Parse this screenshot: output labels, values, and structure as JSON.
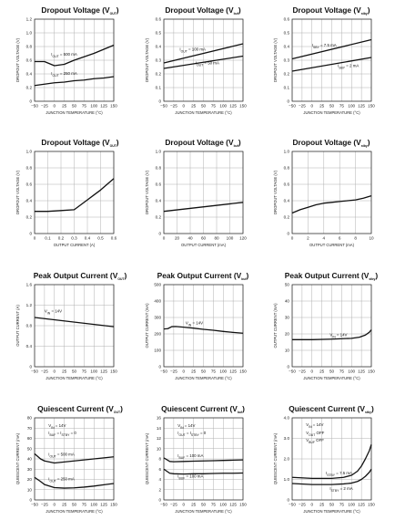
{
  "chart_data": [
    {
      "type": "line",
      "title": "Dropout Voltage (V",
      "title_sub": "OUT",
      "title_end": ")",
      "xlabel": "JUNCTION TEMPERATURE (°C)",
      "ylabel": "DROPOUT VOLTAGE (V)",
      "xlim": [
        -50,
        150
      ],
      "ylim": [
        0,
        1.2
      ],
      "xticks": [
        -50,
        -25,
        0,
        25,
        50,
        75,
        100,
        125,
        150
      ],
      "yticks": [
        0,
        0.2,
        0.4,
        0.6,
        0.8,
        1.0,
        1.2
      ],
      "ytick_labels": [
        "0",
        "0.2",
        "0.4",
        "0.6",
        "0.8",
        "1.0",
        "1.2"
      ],
      "series": [
        {
          "name": "I_OUT = 500 mA",
          "x": [
            -50,
            -25,
            0,
            25,
            50,
            75,
            100,
            125,
            150
          ],
          "y": [
            0.58,
            0.58,
            0.52,
            0.54,
            0.6,
            0.65,
            0.7,
            0.76,
            0.82
          ]
        },
        {
          "name": "I_OUT = 250 mA",
          "x": [
            -50,
            -25,
            0,
            25,
            50,
            75,
            100,
            125,
            150
          ],
          "y": [
            0.23,
            0.25,
            0.27,
            0.28,
            0.3,
            0.31,
            0.33,
            0.34,
            0.36
          ]
        }
      ],
      "annotations": [
        {
          "main": "I",
          "sub": "OUT",
          "rest": " = 500 mA",
          "x": -8,
          "y": 0.67
        },
        {
          "main": "I",
          "sub": "OUT",
          "rest": " = 250 mA",
          "x": -8,
          "y": 0.39
        }
      ]
    },
    {
      "type": "line",
      "title": "Dropout Voltage (V",
      "title_sub": "buf",
      "title_end": ")",
      "xlabel": "JUNCTION TEMPERATURE (°C)",
      "ylabel": "DROPOUT VOLTAGE (V)",
      "xlim": [
        -50,
        150
      ],
      "ylim": [
        0,
        0.6
      ],
      "xticks": [
        -50,
        -25,
        0,
        25,
        50,
        75,
        100,
        125,
        150
      ],
      "yticks": [
        0,
        0.1,
        0.2,
        0.3,
        0.4,
        0.5,
        0.6
      ],
      "ytick_labels": [
        "0",
        "0.1",
        "0.2",
        "0.3",
        "0.4",
        "0.5",
        "0.6"
      ],
      "series": [
        {
          "name": "I_OUT = 100 mA",
          "x": [
            -50,
            150
          ],
          "y": [
            0.28,
            0.42
          ]
        },
        {
          "name": "I_OUT = 50 mA",
          "x": [
            -50,
            150
          ],
          "y": [
            0.24,
            0.33
          ]
        }
      ],
      "annotations": [
        {
          "main": "I",
          "sub": "OUT",
          "rest": " = 100 mA",
          "x": -10,
          "y": 0.37
        },
        {
          "main": "I",
          "sub": "OUT",
          "rest": " = 50 mA",
          "x": 30,
          "y": 0.27
        }
      ]
    },
    {
      "type": "line",
      "title": "Dropout Voltage (V",
      "title_sub": "stby",
      "title_end": ")",
      "xlabel": "JUNCTION TEMPERATURE (°C)",
      "ylabel": "DROPOUT VOLTAGE (V)",
      "xlim": [
        -50,
        150
      ],
      "ylim": [
        0,
        0.6
      ],
      "xticks": [
        -50,
        -25,
        0,
        25,
        50,
        75,
        100,
        125,
        150
      ],
      "yticks": [
        0,
        0.1,
        0.2,
        0.3,
        0.4,
        0.5,
        0.6
      ],
      "ytick_labels": [
        "0",
        "0.1",
        "0.2",
        "0.3",
        "0.4",
        "0.5",
        "0.6"
      ],
      "series": [
        {
          "name": "I_SBY = 7.5 mA",
          "x": [
            -50,
            150
          ],
          "y": [
            0.31,
            0.45
          ]
        },
        {
          "name": "I_SBY = 2 mA",
          "x": [
            -50,
            150
          ],
          "y": [
            0.22,
            0.32
          ]
        }
      ],
      "annotations": [
        {
          "main": "I",
          "sub": "SBY",
          "rest": " = 7.5 mA",
          "x": 0,
          "y": 0.4
        },
        {
          "main": "I",
          "sub": "SBY",
          "rest": " = 2 mA",
          "x": 65,
          "y": 0.25
        }
      ]
    },
    {
      "type": "line",
      "title": "Dropout Voltage (V",
      "title_sub": "OUT",
      "title_end": ")",
      "xlabel": "OUTPUT CURRENT (A)",
      "ylabel": "DROPOUT VOLTAGE (V)",
      "xlim": [
        0,
        0.6
      ],
      "ylim": [
        0,
        1.0
      ],
      "xticks": [
        0,
        0.1,
        0.2,
        0.3,
        0.4,
        0.5,
        0.6
      ],
      "xtick_labels": [
        "0",
        "0.1",
        "0.2",
        "0.3",
        "0.4",
        "0.5",
        "0.6"
      ],
      "yticks": [
        0,
        0.2,
        0.4,
        0.6,
        0.8,
        1.0
      ],
      "ytick_labels": [
        "0",
        "0.2",
        "0.4",
        "0.6",
        "0.8",
        "1.0"
      ],
      "series": [
        {
          "name": "",
          "x": [
            0,
            0.1,
            0.2,
            0.3,
            0.35,
            0.4,
            0.45,
            0.5,
            0.55,
            0.6
          ],
          "y": [
            0.27,
            0.27,
            0.28,
            0.29,
            0.35,
            0.41,
            0.47,
            0.53,
            0.6,
            0.67
          ]
        }
      ],
      "annotations": []
    },
    {
      "type": "line",
      "title": "Dropout Voltage (V",
      "title_sub": "buf",
      "title_end": ")",
      "xlabel": "OUTPUT CURRENT (mA)",
      "ylabel": "DROPOUT VOLTAGE (V)",
      "xlim": [
        0,
        120
      ],
      "ylim": [
        0,
        1.0
      ],
      "xticks": [
        0,
        20,
        40,
        60,
        80,
        100,
        120
      ],
      "yticks": [
        0,
        0.2,
        0.4,
        0.6,
        0.8,
        1.0
      ],
      "ytick_labels": [
        "0",
        "0.2",
        "0.4",
        "0.6",
        "0.8",
        "1.0"
      ],
      "series": [
        {
          "name": "",
          "x": [
            0,
            120
          ],
          "y": [
            0.27,
            0.38
          ]
        }
      ],
      "annotations": []
    },
    {
      "type": "line",
      "title": "Dropout Voltage (V",
      "title_sub": "stby",
      "title_end": ")",
      "xlabel": "OUTPUT CURRENT (mA)",
      "ylabel": "DROPOUT VOLTAGE (V)",
      "xlim": [
        0,
        10
      ],
      "ylim": [
        0,
        1.0
      ],
      "xticks": [
        0,
        2,
        4,
        6,
        8,
        10
      ],
      "yticks": [
        0,
        0.2,
        0.4,
        0.6,
        0.8,
        1.0
      ],
      "ytick_labels": [
        "0",
        "0.2",
        "0.4",
        "0.6",
        "0.8",
        "1.0"
      ],
      "series": [
        {
          "name": "",
          "x": [
            0,
            1,
            2,
            3,
            4,
            5,
            6,
            7,
            8,
            9,
            10
          ],
          "y": [
            0.25,
            0.29,
            0.32,
            0.35,
            0.37,
            0.38,
            0.39,
            0.4,
            0.41,
            0.43,
            0.46
          ]
        }
      ],
      "annotations": []
    },
    {
      "type": "line",
      "title": "Peak Output Current (V",
      "title_sub": "OUT",
      "title_end": ")",
      "xlabel": "JUNCTION TEMPERATURE (°C)",
      "ylabel": "OUTPUT CURRENT (A)",
      "xlim": [
        -50,
        150
      ],
      "ylim": [
        0,
        1.6
      ],
      "xticks": [
        -50,
        -25,
        0,
        25,
        50,
        75,
        100,
        125,
        150
      ],
      "yticks": [
        0,
        0.4,
        0.8,
        1.2,
        1.6
      ],
      "ytick_labels": [
        "0",
        "0.4",
        "0.8",
        "1.2",
        "1.6"
      ],
      "series": [
        {
          "name": "V_IN = 14V",
          "x": [
            -50,
            150
          ],
          "y": [
            0.96,
            0.78
          ]
        }
      ],
      "annotations": [
        {
          "main": "V",
          "sub": "IN",
          "rest": " = 14V",
          "x": -25,
          "y": 1.06
        }
      ]
    },
    {
      "type": "line",
      "title": "Peak Output Current (V",
      "title_sub": "buf",
      "title_end": ")",
      "xlabel": "JUNCTION TEMPERATURE (°C)",
      "ylabel": "OUTPUT CURRENT (mA)",
      "xlim": [
        -50,
        150
      ],
      "ylim": [
        0,
        500
      ],
      "xticks": [
        -50,
        -25,
        0,
        25,
        50,
        75,
        100,
        125,
        150
      ],
      "yticks": [
        0,
        100,
        200,
        300,
        400,
        500
      ],
      "yticks_labels": null,
      "series": [
        {
          "name": "V_IN = 14V",
          "x": [
            -50,
            -40,
            -30,
            -20,
            0,
            25,
            50,
            75,
            100,
            125,
            150
          ],
          "y": [
            230,
            232,
            244,
            245,
            241,
            235,
            228,
            222,
            215,
            209,
            204
          ]
        }
      ],
      "annotations": [
        {
          "main": "V",
          "sub": "IN",
          "rest": " = 14V",
          "x": 5,
          "y": 258
        }
      ]
    },
    {
      "type": "line",
      "title": "Peak Output Current (V",
      "title_sub": "stby",
      "title_end": ")",
      "xlabel": "JUNCTION TEMPERATURE (°C)",
      "ylabel": "OUTPUT CURRENT (mA)",
      "xlim": [
        -50,
        150
      ],
      "ylim": [
        0,
        50
      ],
      "xticks": [
        -50,
        -25,
        0,
        25,
        50,
        75,
        100,
        125,
        150
      ],
      "yticks": [
        0,
        10,
        20,
        30,
        40,
        50
      ],
      "series": [
        {
          "name": "V_IN = 14V",
          "x": [
            -50,
            0,
            50,
            100,
            120,
            135,
            145,
            150
          ],
          "y": [
            16.5,
            16.5,
            16.8,
            17.3,
            18,
            19.3,
            21,
            22.5
          ]
        }
      ],
      "annotations": [
        {
          "main": "V",
          "sub": "IN",
          "rest": " = 14V",
          "x": 45,
          "y": 18.6
        }
      ]
    },
    {
      "type": "line",
      "title": "Quiescent Current (V",
      "title_sub": "OUT",
      "title_end": ")",
      "xlabel": "JUNCTION TEMPERATURE (°C)",
      "ylabel": "QUIESCENT CURRENT (mA)",
      "xlim": [
        -50,
        150
      ],
      "ylim": [
        0,
        80
      ],
      "xticks": [
        -50,
        -25,
        0,
        25,
        50,
        75,
        100,
        125,
        150
      ],
      "yticks": [
        0,
        10,
        20,
        30,
        40,
        50,
        60,
        70,
        80
      ],
      "series": [
        {
          "name": "I_OUT = 500 mA",
          "x": [
            -50,
            -35,
            -25,
            0,
            25,
            50,
            75,
            100,
            125,
            150
          ],
          "y": [
            45,
            40,
            38,
            36,
            37,
            38,
            39,
            40,
            41,
            42
          ]
        },
        {
          "name": "I_OUT = 250 mA",
          "x": [
            -50,
            -35,
            -25,
            0,
            25,
            50,
            75,
            100,
            125,
            150
          ],
          "y": [
            22,
            18,
            15,
            12,
            11.5,
            11.8,
            12.5,
            13.5,
            14.8,
            16
          ]
        }
      ],
      "annotations": [
        {
          "main": "V",
          "sub": "IN",
          "rest": " = 14V",
          "x": -15,
          "y": 71
        },
        {
          "main": "I",
          "sub": "BUF",
          "rest": " = I",
          "sub2": "STBY",
          "rest2": " = 0",
          "x": -15,
          "y": 64
        },
        {
          "main": "I",
          "sub": "OUT",
          "rest": " = 500 mA",
          "x": -15,
          "y": 43
        },
        {
          "main": "I",
          "sub": "OUT",
          "rest": " = 250 mA",
          "x": -15,
          "y": 19
        }
      ]
    },
    {
      "type": "line",
      "title": "Quiescent Current (V",
      "title_sub": "buf",
      "title_end": ")",
      "xlabel": "JUNCTION TEMPERATURE (°C)",
      "ylabel": "QUIESCENT CURRENT (mA)",
      "xlim": [
        -50,
        150
      ],
      "ylim": [
        0,
        16
      ],
      "xticks": [
        -50,
        -25,
        0,
        25,
        50,
        75,
        100,
        125,
        150
      ],
      "yticks": [
        0,
        2,
        4,
        6,
        8,
        10,
        12,
        14,
        16
      ],
      "series": [
        {
          "name": "I_BUF = 100 mA",
          "x": [
            -50,
            -35,
            -25,
            0,
            25,
            50,
            75,
            100,
            125,
            150
          ],
          "y": [
            8.2,
            7.5,
            7.45,
            7.5,
            7.55,
            7.6,
            7.65,
            7.7,
            7.75,
            7.8
          ]
        },
        {
          "name": "I_BUF = 100 mA",
          "x": [
            -50,
            -35,
            -25,
            0,
            25,
            50,
            75,
            100,
            125,
            150
          ],
          "y": [
            6,
            5.2,
            5.1,
            5.05,
            5.1,
            5.1,
            5.15,
            5.2,
            5.2,
            5.25
          ]
        }
      ],
      "annotations": [
        {
          "main": "V",
          "sub": "IN",
          "rest": " = 14V",
          "x": -15,
          "y": 14.2
        },
        {
          "main": "I",
          "sub": "OUT",
          "rest": " = I",
          "sub2": "STBY",
          "rest2": " = 0",
          "x": -15,
          "y": 12.8
        },
        {
          "main": "I",
          "sub": "BUF",
          "rest": " = 100 mA",
          "x": -15,
          "y": 8.4
        },
        {
          "main": "I",
          "sub": "BUF",
          "rest": " = 100 mA",
          "x": -15,
          "y": 4.4
        }
      ]
    },
    {
      "type": "line",
      "title": "Quiescent Current (V",
      "title_sub": "stby",
      "title_end": ")",
      "xlabel": "JUNCTION TEMPERATURE (°C)",
      "ylabel": "QUIESCENT CURRENT (mA)",
      "xlim": [
        -50,
        150
      ],
      "ylim": [
        0,
        4.0
      ],
      "xticks": [
        -50,
        -25,
        0,
        25,
        50,
        75,
        100,
        125,
        150
      ],
      "yticks": [
        0,
        1.0,
        2.0,
        3.0,
        4.0
      ],
      "ytick_labels": [
        "0",
        "1.0",
        "2.0",
        "3.0",
        "4.0"
      ],
      "series": [
        {
          "name": "I_STBY = 7.5 mA",
          "x": [
            -50,
            0,
            50,
            80,
            100,
            115,
            125,
            135,
            145,
            150
          ],
          "y": [
            1.1,
            1.05,
            1.05,
            1.1,
            1.2,
            1.4,
            1.65,
            2.0,
            2.4,
            2.7
          ]
        },
        {
          "name": "I_STBY = 2 mA",
          "x": [
            -50,
            0,
            50,
            80,
            100,
            115,
            125,
            135,
            145,
            150
          ],
          "y": [
            0.8,
            0.75,
            0.75,
            0.78,
            0.82,
            0.9,
            1.0,
            1.15,
            1.35,
            1.5
          ]
        }
      ],
      "annotations": [
        {
          "main": "V",
          "sub": "IN",
          "rest": " = 14V",
          "x": -15,
          "y": 3.6
        },
        {
          "main": "V",
          "sub": "OUT",
          "rest": " OFF",
          "x": -15,
          "y": 3.2
        },
        {
          "main": "V",
          "sub": "BUF",
          "rest": " OFF",
          "x": -15,
          "y": 2.85
        },
        {
          "main": "I",
          "sub": "STBY",
          "rest": " = 7.5 mA",
          "x": 35,
          "y": 1.25
        },
        {
          "main": "I",
          "sub": "STBY",
          "rest": " = 2 mA",
          "x": 45,
          "y": 0.48
        }
      ]
    }
  ]
}
